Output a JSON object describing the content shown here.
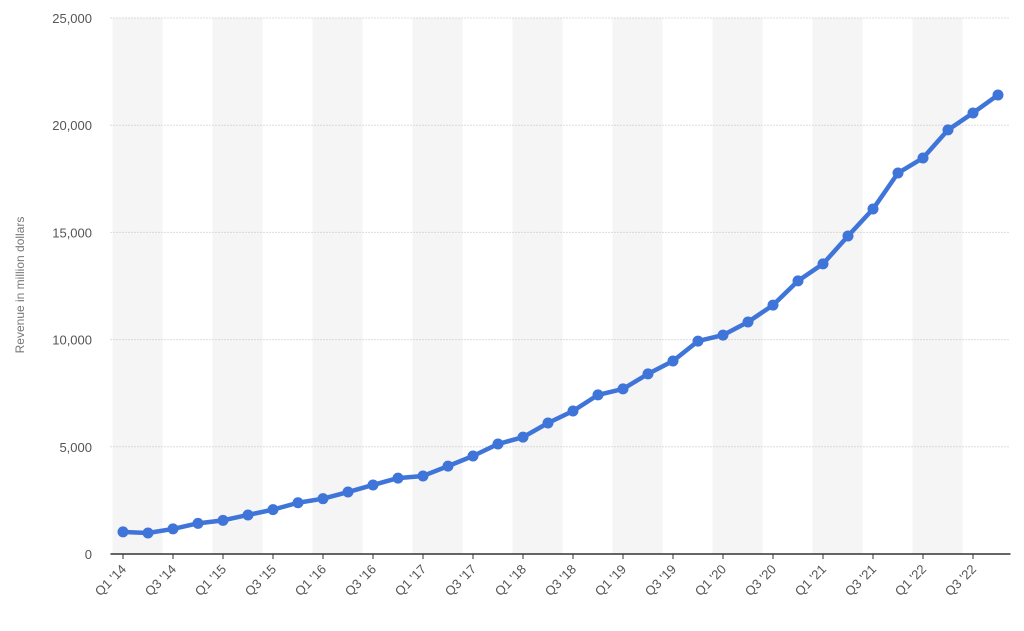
{
  "chart_data": {
    "type": "line",
    "y_label": "Revenue in million dollars",
    "categories": [
      "Q1 '14",
      null,
      "Q3 '14",
      null,
      "Q1 '15",
      null,
      "Q3 '15",
      null,
      "Q1 '16",
      null,
      "Q3 '16",
      null,
      "Q1 '17",
      null,
      "Q3 '17",
      null,
      "Q1 '18",
      null,
      "Q3 '18",
      null,
      "Q1 '19",
      null,
      "Q3 '19",
      null,
      "Q1 '20",
      null,
      "Q3 '20",
      null,
      "Q1 '21",
      null,
      "Q3 '21",
      null,
      "Q1 '22",
      null,
      "Q3 '22",
      null
    ],
    "values": [
      1030,
      980,
      1170,
      1430,
      1570,
      1820,
      2070,
      2390,
      2580,
      2890,
      3220,
      3540,
      3640,
      4100,
      4570,
      5130,
      5450,
      6110,
      6670,
      7420,
      7700,
      8400,
      9000,
      9930,
      10210,
      10820,
      11610,
      12740,
      13530,
      14830,
      16090,
      17770,
      18470,
      19780,
      20570,
      21410
    ],
    "color": "#3f74d9",
    "ylim": [
      0,
      25000
    ],
    "yticks": [
      0,
      {
        "value": 5000,
        "label": "5,000"
      },
      {
        "value": 10000,
        "label": "10,000"
      },
      {
        "value": 15000,
        "label": "15,000"
      },
      {
        "value": 20000,
        "label": "20,000"
      },
      {
        "value": 25000,
        "label": "25,000"
      }
    ],
    "grid": true
  }
}
